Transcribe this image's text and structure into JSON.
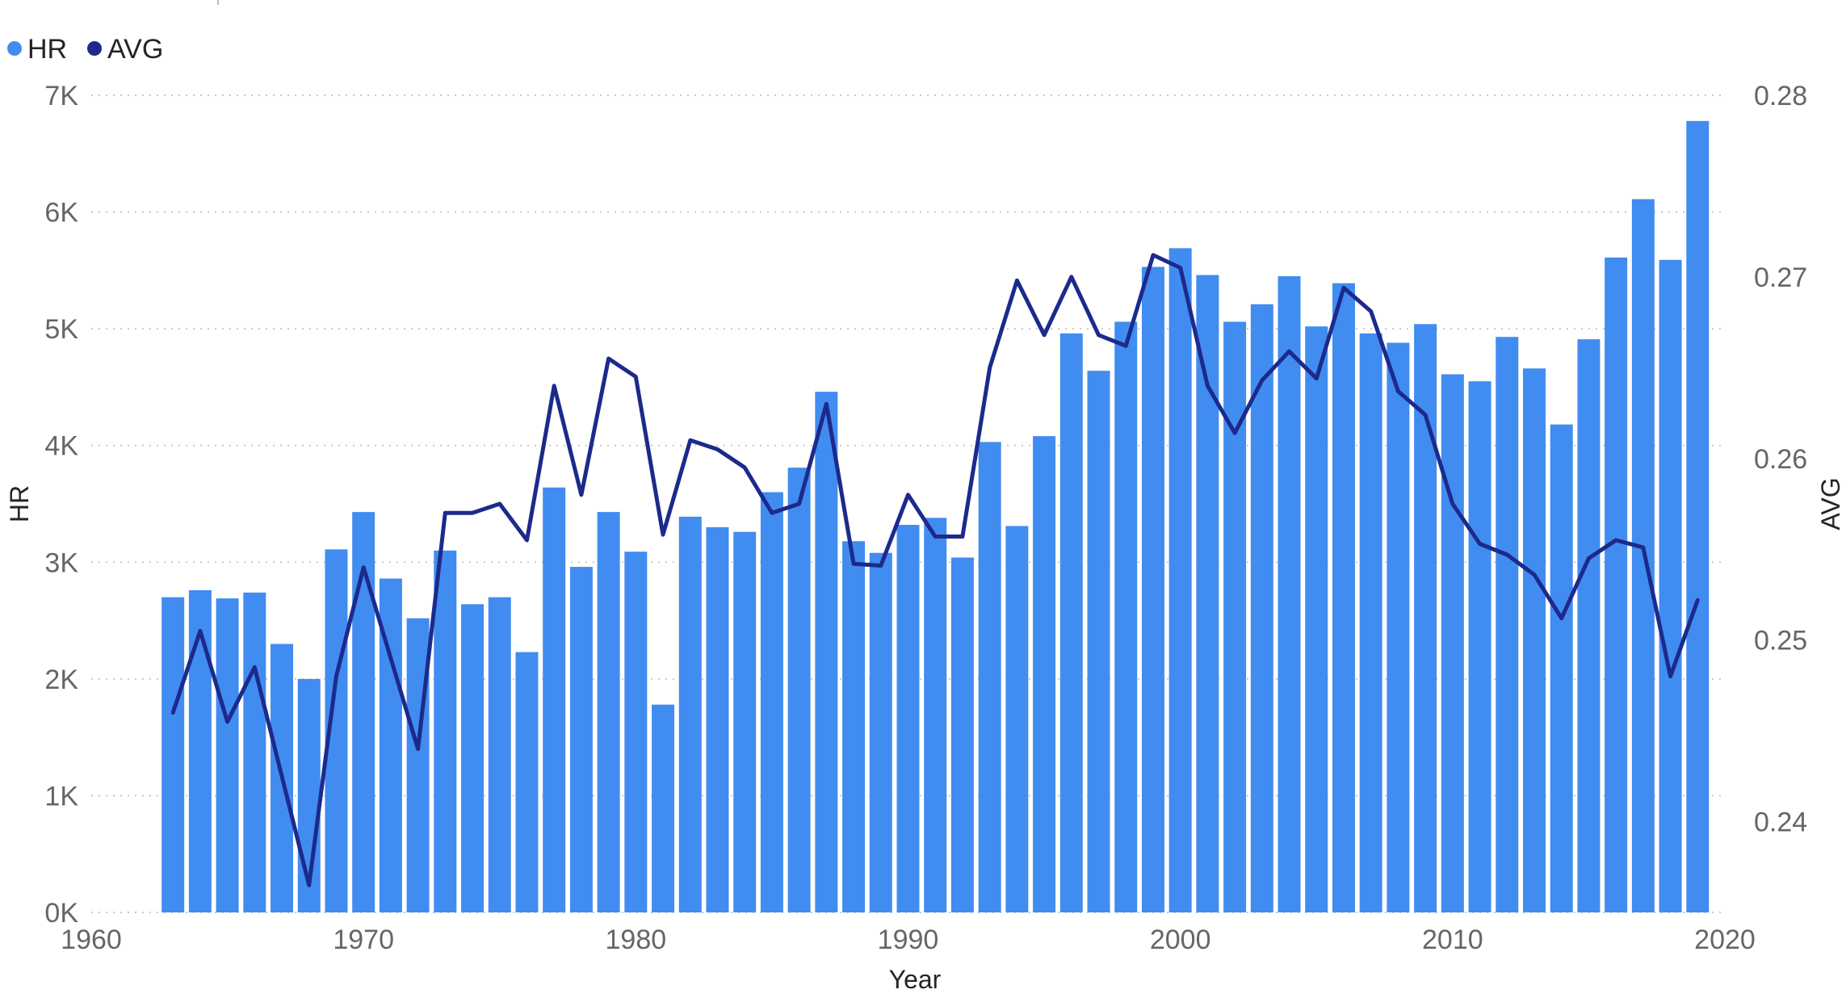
{
  "chart_data": {
    "type": "bar",
    "xlabel": "Year",
    "ylabel": "HR",
    "y2label": "AVG",
    "xlim": [
      1960,
      2020
    ],
    "xticks": [
      "1960",
      "1970",
      "1980",
      "1990",
      "2000",
      "2010",
      "2020"
    ],
    "ylim": [
      0,
      7000
    ],
    "yticks": [
      "0K",
      "1K",
      "2K",
      "3K",
      "4K",
      "5K",
      "6K",
      "7K"
    ],
    "y2lim": [
      0.235,
      0.28
    ],
    "y2ticks": [
      "0.24",
      "0.25",
      "0.26",
      "0.27",
      "0.28"
    ],
    "grid": true,
    "legend_position": "top-left",
    "x": [
      1963,
      1964,
      1965,
      1966,
      1967,
      1968,
      1969,
      1970,
      1971,
      1972,
      1973,
      1974,
      1975,
      1976,
      1977,
      1978,
      1979,
      1980,
      1981,
      1982,
      1983,
      1984,
      1985,
      1986,
      1987,
      1988,
      1989,
      1990,
      1991,
      1992,
      1993,
      1994,
      1995,
      1996,
      1997,
      1998,
      1999,
      2000,
      2001,
      2002,
      2003,
      2004,
      2005,
      2006,
      2007,
      2008,
      2009,
      2010,
      2011,
      2012,
      2013,
      2014,
      2015,
      2016,
      2017,
      2018,
      2019
    ],
    "series": [
      {
        "name": "HR",
        "kind": "bar",
        "axis": "left",
        "color": "#418CF0",
        "values": [
          2700,
          2760,
          2690,
          2740,
          2300,
          2000,
          3110,
          3430,
          2860,
          2520,
          3100,
          2640,
          2700,
          2230,
          3640,
          2960,
          3430,
          3090,
          1780,
          3390,
          3300,
          3260,
          3600,
          3810,
          4460,
          3180,
          3080,
          3320,
          3380,
          3040,
          4030,
          3310,
          4080,
          4960,
          4640,
          5060,
          5530,
          5690,
          5460,
          5060,
          5210,
          5450,
          5020,
          5390,
          4960,
          4880,
          5040,
          4610,
          4550,
          4930,
          4660,
          4180,
          4910,
          5610,
          6110,
          5590,
          6780
        ]
      },
      {
        "name": "AVG",
        "kind": "line",
        "axis": "right",
        "color": "#1C2A8C",
        "values": [
          0.246,
          0.2505,
          0.2455,
          0.2485,
          0.2425,
          0.2365,
          0.248,
          0.254,
          0.249,
          0.244,
          0.257,
          0.257,
          0.2575,
          0.2555,
          0.264,
          0.258,
          0.2655,
          0.2645,
          0.2558,
          0.261,
          0.2605,
          0.2595,
          0.257,
          0.2575,
          0.263,
          0.2542,
          0.2541,
          0.258,
          0.2557,
          0.2557,
          0.265,
          0.2698,
          0.2668,
          0.27,
          0.2668,
          0.2662,
          0.2712,
          0.2705,
          0.264,
          0.2614,
          0.2643,
          0.2659,
          0.2644,
          0.2694,
          0.2681,
          0.2637,
          0.2624,
          0.2575,
          0.2553,
          0.2547,
          0.2536,
          0.2512,
          0.2545,
          0.2555,
          0.2551,
          0.248,
          0.2522
        ]
      }
    ]
  }
}
